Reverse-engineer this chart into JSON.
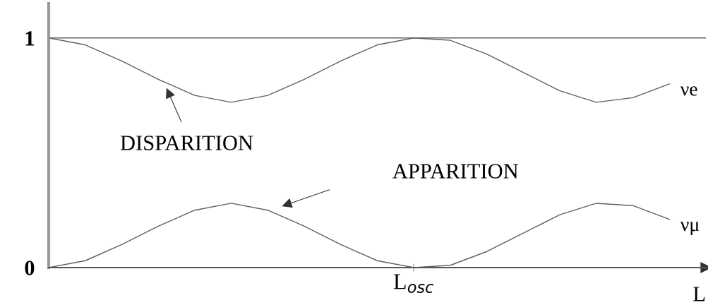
{
  "chart_data": {
    "type": "line",
    "categories": [
      null,
      null,
      null,
      null,
      null,
      null,
      null,
      null,
      null,
      null,
      "L$_{osc}$",
      null,
      null,
      null,
      null,
      null,
      null,
      null
    ],
    "series": [
      {
        "name": "νe",
        "color": "#606060",
        "values": [
          1,
          0.97,
          0.9,
          0.82,
          0.75,
          0.72,
          0.75,
          0.82,
          0.9,
          0.97,
          1,
          0.99,
          0.93,
          0.85,
          0.77,
          0.72,
          0.74,
          0.8
        ]
      },
      {
        "name": "νμ",
        "color": "#606060",
        "values": [
          0,
          0.03,
          0.1,
          0.18,
          0.25,
          0.28,
          0.25,
          0.18,
          0.1,
          0.03,
          0,
          0.01,
          0.07,
          0.15,
          0.23,
          0.28,
          0.27,
          0.21
        ]
      }
    ],
    "xlabel": "L",
    "ylim": [
      0,
      1.15
    ],
    "yticks": [
      0,
      1
    ],
    "ref_lines": [
      {
        "axis": "y",
        "value": 1,
        "color": "#606060"
      }
    ],
    "annotations": [
      "DISPARITION",
      "APPARITION"
    ],
    "legend": false,
    "grid": false,
    "marker": "none",
    "line_style": "solid"
  }
}
